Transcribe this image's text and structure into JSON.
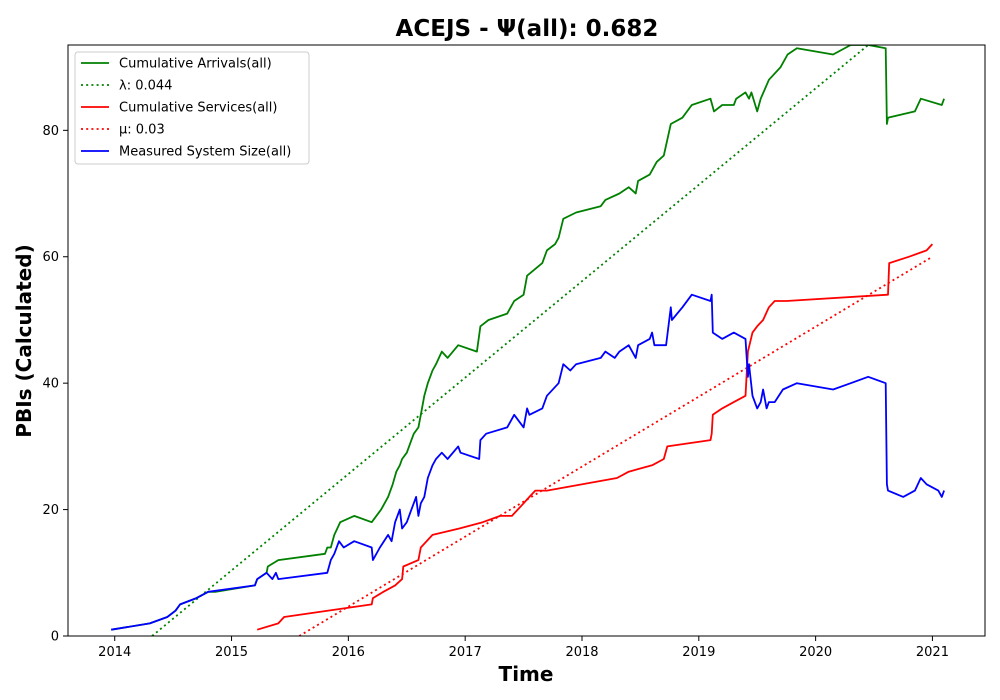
{
  "chart_data": {
    "type": "line",
    "title": "ACEJS -  Ψ(all): 0.682",
    "xlabel": "Time",
    "ylabel": "PBIs (Calculated)",
    "x_unit": "year",
    "xlim": [
      2013.6,
      2021.45
    ],
    "ylim": [
      0,
      93.5
    ],
    "x_ticks": [
      2014,
      2015,
      2016,
      2017,
      2018,
      2019,
      2020,
      2021
    ],
    "x_tick_labels": [
      "2014",
      "2015",
      "2016",
      "2017",
      "2018",
      "2019",
      "2020",
      "2021"
    ],
    "y_ticks": [
      0,
      20,
      40,
      60,
      80
    ],
    "y_tick_labels": [
      "0",
      "20",
      "40",
      "60",
      "80"
    ],
    "grid": false,
    "legend_position": "top-left",
    "legend": [
      {
        "label": "Cumulative Arrivals(all)",
        "color": "#008000",
        "style": "solid"
      },
      {
        "label": "λ: 0.044",
        "color": "#008000",
        "style": "dotted"
      },
      {
        "label": "Cumulative Services(all)",
        "color": "#ff0000",
        "style": "solid"
      },
      {
        "label": "μ: 0.03",
        "color": "#ff0000",
        "style": "dotted"
      },
      {
        "label": "Measured System Size(all)",
        "color": "#0000ff",
        "style": "solid"
      }
    ],
    "series": [
      {
        "name": "Cumulative Arrivals(all)",
        "color": "#008000",
        "style": "solid",
        "points": [
          [
            2013.97,
            1
          ],
          [
            2014.3,
            2
          ],
          [
            2014.45,
            3
          ],
          [
            2014.52,
            4
          ],
          [
            2014.56,
            5
          ],
          [
            2014.7,
            6
          ],
          [
            2014.8,
            7
          ],
          [
            2014.86,
            7
          ],
          [
            2015.2,
            8
          ],
          [
            2015.22,
            9
          ],
          [
            2015.3,
            10
          ],
          [
            2015.31,
            11
          ],
          [
            2015.4,
            12
          ],
          [
            2015.8,
            13
          ],
          [
            2015.82,
            14
          ],
          [
            2015.85,
            14
          ],
          [
            2015.88,
            16
          ],
          [
            2015.93,
            18
          ],
          [
            2016.05,
            19
          ],
          [
            2016.2,
            18
          ],
          [
            2016.28,
            20
          ],
          [
            2016.34,
            22
          ],
          [
            2016.38,
            24
          ],
          [
            2016.41,
            26
          ],
          [
            2016.44,
            27
          ],
          [
            2016.46,
            28
          ],
          [
            2016.5,
            29
          ],
          [
            2016.54,
            31
          ],
          [
            2016.56,
            32
          ],
          [
            2016.6,
            33
          ],
          [
            2016.62,
            35
          ],
          [
            2016.65,
            38
          ],
          [
            2016.68,
            40
          ],
          [
            2016.72,
            42
          ],
          [
            2016.75,
            43
          ],
          [
            2016.8,
            45
          ],
          [
            2016.85,
            44
          ],
          [
            2016.94,
            46
          ],
          [
            2017.1,
            45
          ],
          [
            2017.13,
            49
          ],
          [
            2017.2,
            50
          ],
          [
            2017.36,
            51
          ],
          [
            2017.42,
            53
          ],
          [
            2017.5,
            54
          ],
          [
            2017.53,
            57
          ],
          [
            2017.66,
            59
          ],
          [
            2017.7,
            61
          ],
          [
            2017.77,
            62
          ],
          [
            2017.8,
            63
          ],
          [
            2017.84,
            66
          ],
          [
            2017.95,
            67
          ],
          [
            2018.16,
            68
          ],
          [
            2018.2,
            69
          ],
          [
            2018.32,
            70
          ],
          [
            2018.4,
            71
          ],
          [
            2018.46,
            70
          ],
          [
            2018.48,
            72
          ],
          [
            2018.58,
            73
          ],
          [
            2018.64,
            75
          ],
          [
            2018.7,
            76
          ],
          [
            2018.76,
            81
          ],
          [
            2018.86,
            82
          ],
          [
            2018.94,
            84
          ],
          [
            2019.1,
            85
          ],
          [
            2019.13,
            83
          ],
          [
            2019.2,
            84
          ],
          [
            2019.3,
            84
          ],
          [
            2019.32,
            85
          ],
          [
            2019.4,
            86
          ],
          [
            2019.43,
            85
          ],
          [
            2019.45,
            86
          ],
          [
            2019.5,
            83
          ],
          [
            2019.53,
            85
          ],
          [
            2019.6,
            88
          ],
          [
            2019.7,
            90
          ],
          [
            2019.76,
            92
          ],
          [
            2019.84,
            93
          ],
          [
            2020.15,
            92
          ],
          [
            2020.3,
            93.5
          ],
          [
            2020.45,
            93.5
          ],
          [
            2020.6,
            93
          ],
          [
            2020.61,
            81
          ],
          [
            2020.62,
            82
          ],
          [
            2020.85,
            83
          ],
          [
            2020.9,
            85
          ],
          [
            2021.08,
            84
          ],
          [
            2021.1,
            85
          ]
        ]
      },
      {
        "name": "λ: 0.044",
        "color": "#008000",
        "style": "dotted",
        "points": [
          [
            2014.32,
            0
          ],
          [
            2020.45,
            93.5
          ]
        ]
      },
      {
        "name": "Cumulative Services(all)",
        "color": "#ff0000",
        "style": "solid",
        "points": [
          [
            2015.22,
            1
          ],
          [
            2015.4,
            2
          ],
          [
            2015.45,
            3
          ],
          [
            2016.2,
            5
          ],
          [
            2016.21,
            6
          ],
          [
            2016.3,
            7
          ],
          [
            2016.4,
            8
          ],
          [
            2016.46,
            9
          ],
          [
            2016.47,
            11
          ],
          [
            2016.6,
            12
          ],
          [
            2016.62,
            14
          ],
          [
            2016.72,
            16
          ],
          [
            2016.95,
            17
          ],
          [
            2017.15,
            18
          ],
          [
            2017.3,
            19
          ],
          [
            2017.4,
            19
          ],
          [
            2017.5,
            21
          ],
          [
            2017.55,
            22
          ],
          [
            2017.6,
            23
          ],
          [
            2017.7,
            23
          ],
          [
            2018.3,
            25
          ],
          [
            2018.4,
            26
          ],
          [
            2018.6,
            27
          ],
          [
            2018.7,
            28
          ],
          [
            2018.73,
            30
          ],
          [
            2019.1,
            31
          ],
          [
            2019.11,
            32
          ],
          [
            2019.12,
            35
          ],
          [
            2019.2,
            36
          ],
          [
            2019.3,
            37
          ],
          [
            2019.4,
            38
          ],
          [
            2019.42,
            45
          ],
          [
            2019.46,
            48
          ],
          [
            2019.5,
            49
          ],
          [
            2019.55,
            50
          ],
          [
            2019.6,
            52
          ],
          [
            2019.65,
            53
          ],
          [
            2019.75,
            53
          ],
          [
            2020.62,
            54
          ],
          [
            2020.63,
            59
          ],
          [
            2020.8,
            60
          ],
          [
            2020.95,
            61
          ],
          [
            2021.0,
            62
          ]
        ]
      },
      {
        "name": "μ: 0.03",
        "color": "#ff0000",
        "style": "dotted",
        "points": [
          [
            2015.58,
            0
          ],
          [
            2021.0,
            60
          ]
        ]
      },
      {
        "name": "Measured System Size(all)",
        "color": "#0000ff",
        "style": "solid",
        "points": [
          [
            2013.97,
            1
          ],
          [
            2014.3,
            2
          ],
          [
            2014.45,
            3
          ],
          [
            2014.52,
            4
          ],
          [
            2014.56,
            5
          ],
          [
            2014.7,
            6
          ],
          [
            2014.8,
            7
          ],
          [
            2015.2,
            8
          ],
          [
            2015.22,
            9
          ],
          [
            2015.3,
            10
          ],
          [
            2015.35,
            9
          ],
          [
            2015.38,
            10
          ],
          [
            2015.4,
            9
          ],
          [
            2015.82,
            10
          ],
          [
            2015.85,
            12
          ],
          [
            2015.88,
            13
          ],
          [
            2015.92,
            15
          ],
          [
            2015.96,
            14
          ],
          [
            2016.05,
            15
          ],
          [
            2016.2,
            14
          ],
          [
            2016.21,
            12
          ],
          [
            2016.27,
            14
          ],
          [
            2016.34,
            16
          ],
          [
            2016.37,
            15
          ],
          [
            2016.4,
            18
          ],
          [
            2016.44,
            20
          ],
          [
            2016.46,
            17
          ],
          [
            2016.5,
            18
          ],
          [
            2016.54,
            20
          ],
          [
            2016.58,
            22
          ],
          [
            2016.6,
            19
          ],
          [
            2016.62,
            21
          ],
          [
            2016.65,
            22
          ],
          [
            2016.68,
            25
          ],
          [
            2016.72,
            27
          ],
          [
            2016.75,
            28
          ],
          [
            2016.8,
            29
          ],
          [
            2016.85,
            28
          ],
          [
            2016.94,
            30
          ],
          [
            2016.96,
            29
          ],
          [
            2017.12,
            28
          ],
          [
            2017.13,
            31
          ],
          [
            2017.18,
            32
          ],
          [
            2017.36,
            33
          ],
          [
            2017.42,
            35
          ],
          [
            2017.5,
            33
          ],
          [
            2017.53,
            36
          ],
          [
            2017.55,
            35
          ],
          [
            2017.66,
            36
          ],
          [
            2017.7,
            38
          ],
          [
            2017.8,
            40
          ],
          [
            2017.84,
            43
          ],
          [
            2017.9,
            42
          ],
          [
            2017.95,
            43
          ],
          [
            2018.16,
            44
          ],
          [
            2018.2,
            45
          ],
          [
            2018.28,
            44
          ],
          [
            2018.32,
            45
          ],
          [
            2018.4,
            46
          ],
          [
            2018.46,
            44
          ],
          [
            2018.48,
            46
          ],
          [
            2018.58,
            47
          ],
          [
            2018.6,
            48
          ],
          [
            2018.62,
            46
          ],
          [
            2018.72,
            46
          ],
          [
            2018.76,
            52
          ],
          [
            2018.77,
            50
          ],
          [
            2018.86,
            52
          ],
          [
            2018.94,
            54
          ],
          [
            2019.1,
            53
          ],
          [
            2019.11,
            54
          ],
          [
            2019.12,
            48
          ],
          [
            2019.2,
            47
          ],
          [
            2019.3,
            48
          ],
          [
            2019.4,
            47
          ],
          [
            2019.42,
            41
          ],
          [
            2019.43,
            43
          ],
          [
            2019.46,
            38
          ],
          [
            2019.5,
            36
          ],
          [
            2019.53,
            37
          ],
          [
            2019.55,
            39
          ],
          [
            2019.58,
            36
          ],
          [
            2019.6,
            37
          ],
          [
            2019.65,
            37
          ],
          [
            2019.72,
            39
          ],
          [
            2019.84,
            40
          ],
          [
            2020.15,
            39
          ],
          [
            2020.3,
            40
          ],
          [
            2020.45,
            41
          ],
          [
            2020.6,
            40
          ],
          [
            2020.61,
            24
          ],
          [
            2020.62,
            23
          ],
          [
            2020.75,
            22
          ],
          [
            2020.85,
            23
          ],
          [
            2020.9,
            25
          ],
          [
            2020.95,
            24
          ],
          [
            2021.05,
            23
          ],
          [
            2021.08,
            22
          ],
          [
            2021.1,
            23
          ]
        ]
      }
    ]
  }
}
